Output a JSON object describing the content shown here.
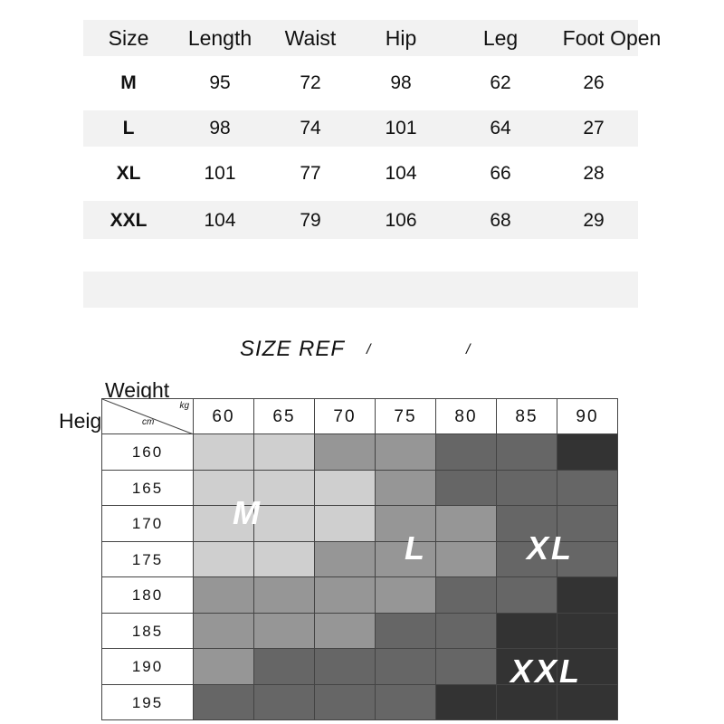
{
  "size_table": {
    "headers": [
      "Size",
      "Length",
      "Waist",
      "Hip",
      "Leg",
      "Foot Open"
    ],
    "rows": [
      [
        "M",
        "95",
        "72",
        "98",
        "62",
        "26"
      ],
      [
        "L",
        "98",
        "74",
        "101",
        "64",
        "27"
      ],
      [
        "XL",
        "101",
        "77",
        "104",
        "66",
        "28"
      ],
      [
        "XXL",
        "104",
        "79",
        "106",
        "68",
        "29"
      ]
    ]
  },
  "size_ref": {
    "title": "SIZE REF",
    "slash": "/"
  },
  "reference_grid": {
    "weight_label": "Weight",
    "height_label": "Height",
    "weight_unit": "kg",
    "height_unit": "cm",
    "weights": [
      "60",
      "65",
      "70",
      "75",
      "80",
      "85",
      "90"
    ],
    "heights": [
      "160",
      "165",
      "170",
      "175",
      "180",
      "185",
      "190",
      "195"
    ],
    "shade_levels": [
      [
        1,
        1,
        2,
        2,
        3,
        3,
        4
      ],
      [
        1,
        1,
        1,
        2,
        3,
        3,
        3
      ],
      [
        1,
        1,
        1,
        2,
        2,
        3,
        3
      ],
      [
        1,
        1,
        2,
        2,
        2,
        3,
        3
      ],
      [
        2,
        2,
        2,
        2,
        3,
        3,
        4
      ],
      [
        2,
        2,
        2,
        3,
        3,
        4,
        4
      ],
      [
        2,
        3,
        3,
        3,
        3,
        4,
        4
      ],
      [
        3,
        3,
        3,
        3,
        4,
        4,
        4
      ]
    ],
    "shade_colors": {
      "1": "#cfcfcf",
      "2": "#969696",
      "3": "#666666",
      "4": "#333333"
    },
    "zone_labels": [
      "M",
      "L",
      "XL",
      "XXL"
    ]
  }
}
